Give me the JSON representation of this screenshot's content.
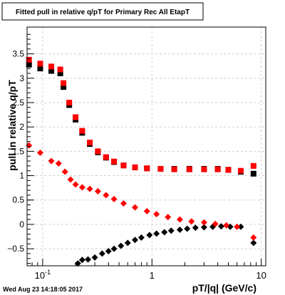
{
  "chart_data": {
    "type": "scatter",
    "title": "Fitted pull in relative q/pT for Primary Rec All EtapT",
    "xlabel": "pT/|q| (GeV/c)",
    "ylabel": "pull in relative q/pT",
    "x_scale": "log",
    "xlim": [
      0.072,
      11
    ],
    "ylim": [
      -0.85,
      4.05
    ],
    "x_tick_labels": [
      {
        "value": 0.1,
        "label": "10",
        "exponent": "-1"
      },
      {
        "value": 1,
        "label": "1",
        "exponent": ""
      },
      {
        "value": 10,
        "label": "10",
        "exponent": ""
      }
    ],
    "y_tick_labels": [
      {
        "value": -0.5,
        "label": "−0.5"
      },
      {
        "value": 0,
        "label": "0"
      },
      {
        "value": 0.5,
        "label": "0.5"
      },
      {
        "value": 1,
        "label": "1"
      },
      {
        "value": 1.5,
        "label": "1.5"
      },
      {
        "value": 2,
        "label": "2"
      },
      {
        "value": 2.5,
        "label": "2.5"
      },
      {
        "value": 3,
        "label": "3"
      },
      {
        "value": 3.5,
        "label": "3.5"
      }
    ],
    "grid": true,
    "timestamp": "Wed Aug 23 14:18:05 2017",
    "colors": {
      "black": "#000000",
      "red": "#ff0000",
      "grid": "#cfcfcf"
    },
    "series": [
      {
        "marker": "square",
        "color": "#000000",
        "x": [
          0.075,
          0.095,
          0.12,
          0.145,
          0.155,
          0.175,
          0.2,
          0.23,
          0.27,
          0.32,
          0.38,
          0.45,
          0.55,
          0.7,
          0.9,
          1.2,
          1.6,
          2.2,
          3,
          4,
          5,
          6.5,
          8.5
        ],
        "y": [
          3.28,
          3.2,
          3.15,
          3.1,
          2.82,
          2.45,
          2.15,
          1.88,
          1.65,
          1.48,
          1.37,
          1.28,
          1.21,
          1.17,
          1.15,
          1.14,
          1.14,
          1.14,
          1.14,
          1.14,
          1.12,
          1.08,
          1.04
        ]
      },
      {
        "marker": "square",
        "color": "#ff0000",
        "x": [
          0.075,
          0.095,
          0.12,
          0.145,
          0.155,
          0.175,
          0.2,
          0.23,
          0.27,
          0.32,
          0.38,
          0.45,
          0.55,
          0.7,
          0.9,
          1.2,
          1.6,
          2.2,
          3,
          4,
          5,
          6.5,
          8.5
        ],
        "y": [
          3.38,
          3.3,
          3.24,
          3.18,
          2.9,
          2.5,
          2.2,
          1.92,
          1.68,
          1.5,
          1.38,
          1.29,
          1.21,
          1.17,
          1.15,
          1.14,
          1.13,
          1.13,
          1.13,
          1.13,
          1.12,
          1.1,
          1.2
        ]
      },
      {
        "marker": "diamond",
        "color": "#000000",
        "x": [
          0.21,
          0.23,
          0.26,
          0.3,
          0.35,
          0.4,
          0.45,
          0.52,
          0.6,
          0.7,
          0.8,
          0.95,
          1.1,
          1.3,
          1.5,
          1.8,
          2.1,
          2.5,
          3,
          3.6,
          4.3,
          5.2,
          6.5,
          8.5
        ],
        "y": [
          -0.8,
          -0.73,
          -0.72,
          -0.68,
          -0.6,
          -0.55,
          -0.5,
          -0.44,
          -0.38,
          -0.32,
          -0.27,
          -0.22,
          -0.19,
          -0.16,
          -0.13,
          -0.11,
          -0.09,
          -0.07,
          -0.06,
          -0.05,
          -0.04,
          -0.05,
          -0.05,
          -0.38
        ]
      },
      {
        "marker": "diamond",
        "color": "#ff0000",
        "x": [
          0.075,
          0.095,
          0.12,
          0.14,
          0.16,
          0.18,
          0.2,
          0.23,
          0.27,
          0.32,
          0.38,
          0.45,
          0.55,
          0.7,
          0.9,
          1.1,
          1.4,
          1.8,
          2.3,
          3,
          3.8,
          4.8,
          6,
          8.5
        ],
        "y": [
          1.62,
          1.47,
          1.3,
          1.25,
          1.08,
          0.92,
          0.82,
          0.76,
          0.73,
          0.68,
          0.6,
          0.52,
          0.43,
          0.35,
          0.27,
          0.21,
          0.15,
          0.1,
          0.06,
          0.04,
          0.01,
          -0.02,
          -0.05,
          -0.27
        ]
      }
    ]
  }
}
